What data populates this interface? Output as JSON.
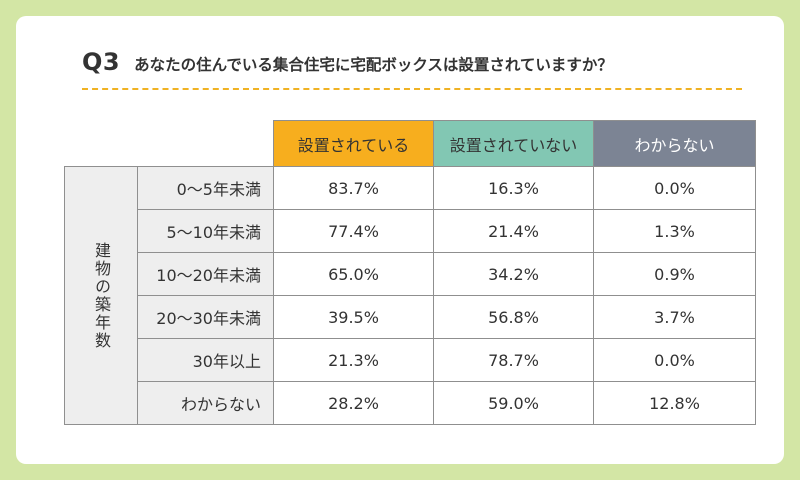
{
  "question": {
    "number": "Q3",
    "text": "あなたの住んでいる集合住宅に宅配ボックスは設置されていますか？"
  },
  "colors": {
    "background": "#d3e6a5",
    "accent_dash": "#f0b223",
    "col_yes": "#f7ae1e",
    "col_no": "#82c7b3",
    "col_unknown": "#7c8494",
    "row_label_bg": "#eeeeee"
  },
  "chart_data": {
    "type": "table",
    "row_group_label": "建物の築年数",
    "columns": [
      "設置されている",
      "設置されていない",
      "わからない"
    ],
    "rows": [
      {
        "label": "0〜5年未満",
        "values": [
          "83.7%",
          "16.3%",
          "0.0%"
        ]
      },
      {
        "label": "5〜10年未満",
        "values": [
          "77.4%",
          "21.4%",
          "1.3%"
        ]
      },
      {
        "label": "10〜20年未満",
        "values": [
          "65.0%",
          "34.2%",
          "0.9%"
        ]
      },
      {
        "label": "20〜30年未満",
        "values": [
          "39.5%",
          "56.8%",
          "3.7%"
        ]
      },
      {
        "label": "30年以上",
        "values": [
          "21.3%",
          "78.7%",
          "0.0%"
        ]
      },
      {
        "label": "わからない",
        "values": [
          "28.2%",
          "59.0%",
          "12.8%"
        ]
      }
    ]
  }
}
